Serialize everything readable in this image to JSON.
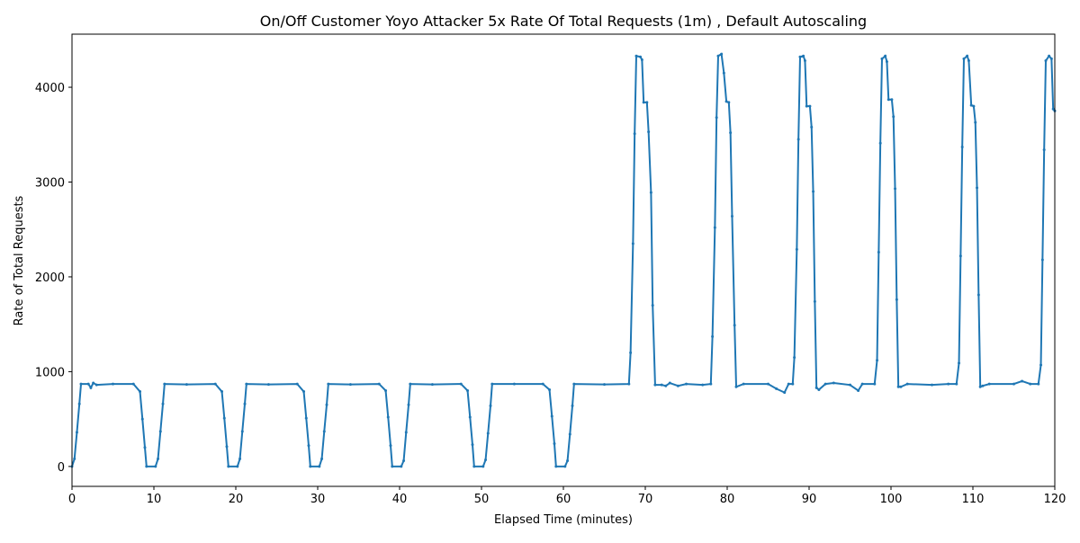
{
  "chart_data": {
    "type": "line",
    "title": "On/Off Customer Yoyo Attacker 5x Rate Of Total Requests (1m) , Default Autoscaling",
    "x_label": "Elapsed Time (minutes)",
    "y_label": "Rate of Total Requests",
    "xlim": [
      0,
      120
    ],
    "xticks": [
      0,
      10,
      20,
      30,
      40,
      50,
      60,
      70,
      80,
      90,
      100,
      110,
      120
    ],
    "ylim": [
      -210,
      4560
    ],
    "yticks": [
      0,
      1000,
      2000,
      3000,
      4000
    ],
    "grid": false,
    "x": [
      0,
      0.3,
      0.6,
      0.9,
      1.1,
      2,
      2.3,
      2.6,
      3,
      5,
      7.5,
      8.3,
      8.6,
      8.9,
      9.1,
      10.2,
      10.5,
      10.8,
      11.1,
      11.3,
      14,
      17.5,
      18.3,
      18.6,
      18.9,
      19.1,
      20.2,
      20.5,
      20.8,
      21.1,
      21.3,
      24,
      27.5,
      28.3,
      28.6,
      28.9,
      29.1,
      30.2,
      30.5,
      30.8,
      31.1,
      31.3,
      34,
      37.5,
      38.3,
      38.6,
      38.9,
      39.1,
      40.2,
      40.5,
      40.8,
      41.1,
      41.3,
      44,
      47.5,
      48.3,
      48.6,
      48.9,
      49.1,
      50.2,
      50.5,
      50.8,
      51.1,
      51.3,
      54,
      57.5,
      58.3,
      58.6,
      58.9,
      59.1,
      60.2,
      60.5,
      60.8,
      61.1,
      61.3,
      65,
      68,
      68.2,
      68.5,
      68.7,
      68.9,
      69.4,
      69.6,
      69.8,
      70.2,
      70.4,
      70.7,
      70.9,
      71.2,
      72,
      72.5,
      73,
      74,
      75,
      77,
      78,
      78.2,
      78.5,
      78.7,
      78.9,
      79.3,
      79.6,
      79.9,
      80.2,
      80.4,
      80.6,
      80.9,
      81.1,
      82,
      85,
      86,
      87,
      87.5,
      88,
      88.2,
      88.5,
      88.7,
      88.9,
      89.3,
      89.5,
      89.7,
      90.1,
      90.3,
      90.5,
      90.7,
      90.9,
      91.2,
      92,
      93,
      95,
      96,
      96.5,
      98,
      98.3,
      98.5,
      98.7,
      98.9,
      99.3,
      99.5,
      99.7,
      100.1,
      100.3,
      100.5,
      100.7,
      100.9,
      101.2,
      102,
      105,
      107,
      108,
      108.3,
      108.5,
      108.7,
      108.9,
      109.3,
      109.5,
      109.8,
      110.1,
      110.3,
      110.5,
      110.7,
      110.9,
      111.2,
      112,
      115,
      116,
      117,
      118,
      118.3,
      118.5,
      118.7,
      118.9,
      119.3,
      119.6,
      119.8,
      120
    ],
    "series": [
      {
        "name": "Rate of Total Requests",
        "color": "#1f77b4",
        "values": [
          0,
          80,
          360,
          660,
          870,
          870,
          830,
          880,
          860,
          870,
          870,
          790,
          500,
          200,
          0,
          0,
          80,
          370,
          660,
          870,
          865,
          870,
          790,
          510,
          210,
          0,
          0,
          80,
          370,
          660,
          870,
          865,
          870,
          790,
          510,
          220,
          0,
          0,
          80,
          370,
          650,
          870,
          865,
          870,
          800,
          520,
          220,
          0,
          0,
          60,
          360,
          650,
          870,
          865,
          870,
          800,
          520,
          230,
          0,
          0,
          70,
          350,
          640,
          870,
          870,
          870,
          810,
          530,
          240,
          0,
          0,
          60,
          340,
          640,
          870,
          865,
          870,
          1200,
          2350,
          3510,
          4330,
          4320,
          4290,
          3840,
          3840,
          3530,
          2890,
          1700,
          860,
          860,
          850,
          880,
          850,
          870,
          860,
          870,
          1370,
          2520,
          3680,
          4330,
          4350,
          4150,
          3850,
          3840,
          3520,
          2640,
          1490,
          840,
          870,
          870,
          820,
          780,
          870,
          870,
          1150,
          2290,
          3450,
          4320,
          4330,
          4280,
          3800,
          3800,
          3580,
          2900,
          1740,
          830,
          810,
          870,
          880,
          860,
          800,
          870,
          870,
          1120,
          2260,
          3410,
          4300,
          4330,
          4270,
          3870,
          3870,
          3690,
          2930,
          1760,
          840,
          840,
          870,
          860,
          870,
          870,
          1090,
          2220,
          3370,
          4300,
          4330,
          4280,
          3810,
          3800,
          3630,
          2940,
          1810,
          840,
          850,
          870,
          870,
          900,
          870,
          870,
          1070,
          2180,
          3340,
          4280,
          4330,
          4300,
          3770,
          3750
        ]
      }
    ]
  }
}
